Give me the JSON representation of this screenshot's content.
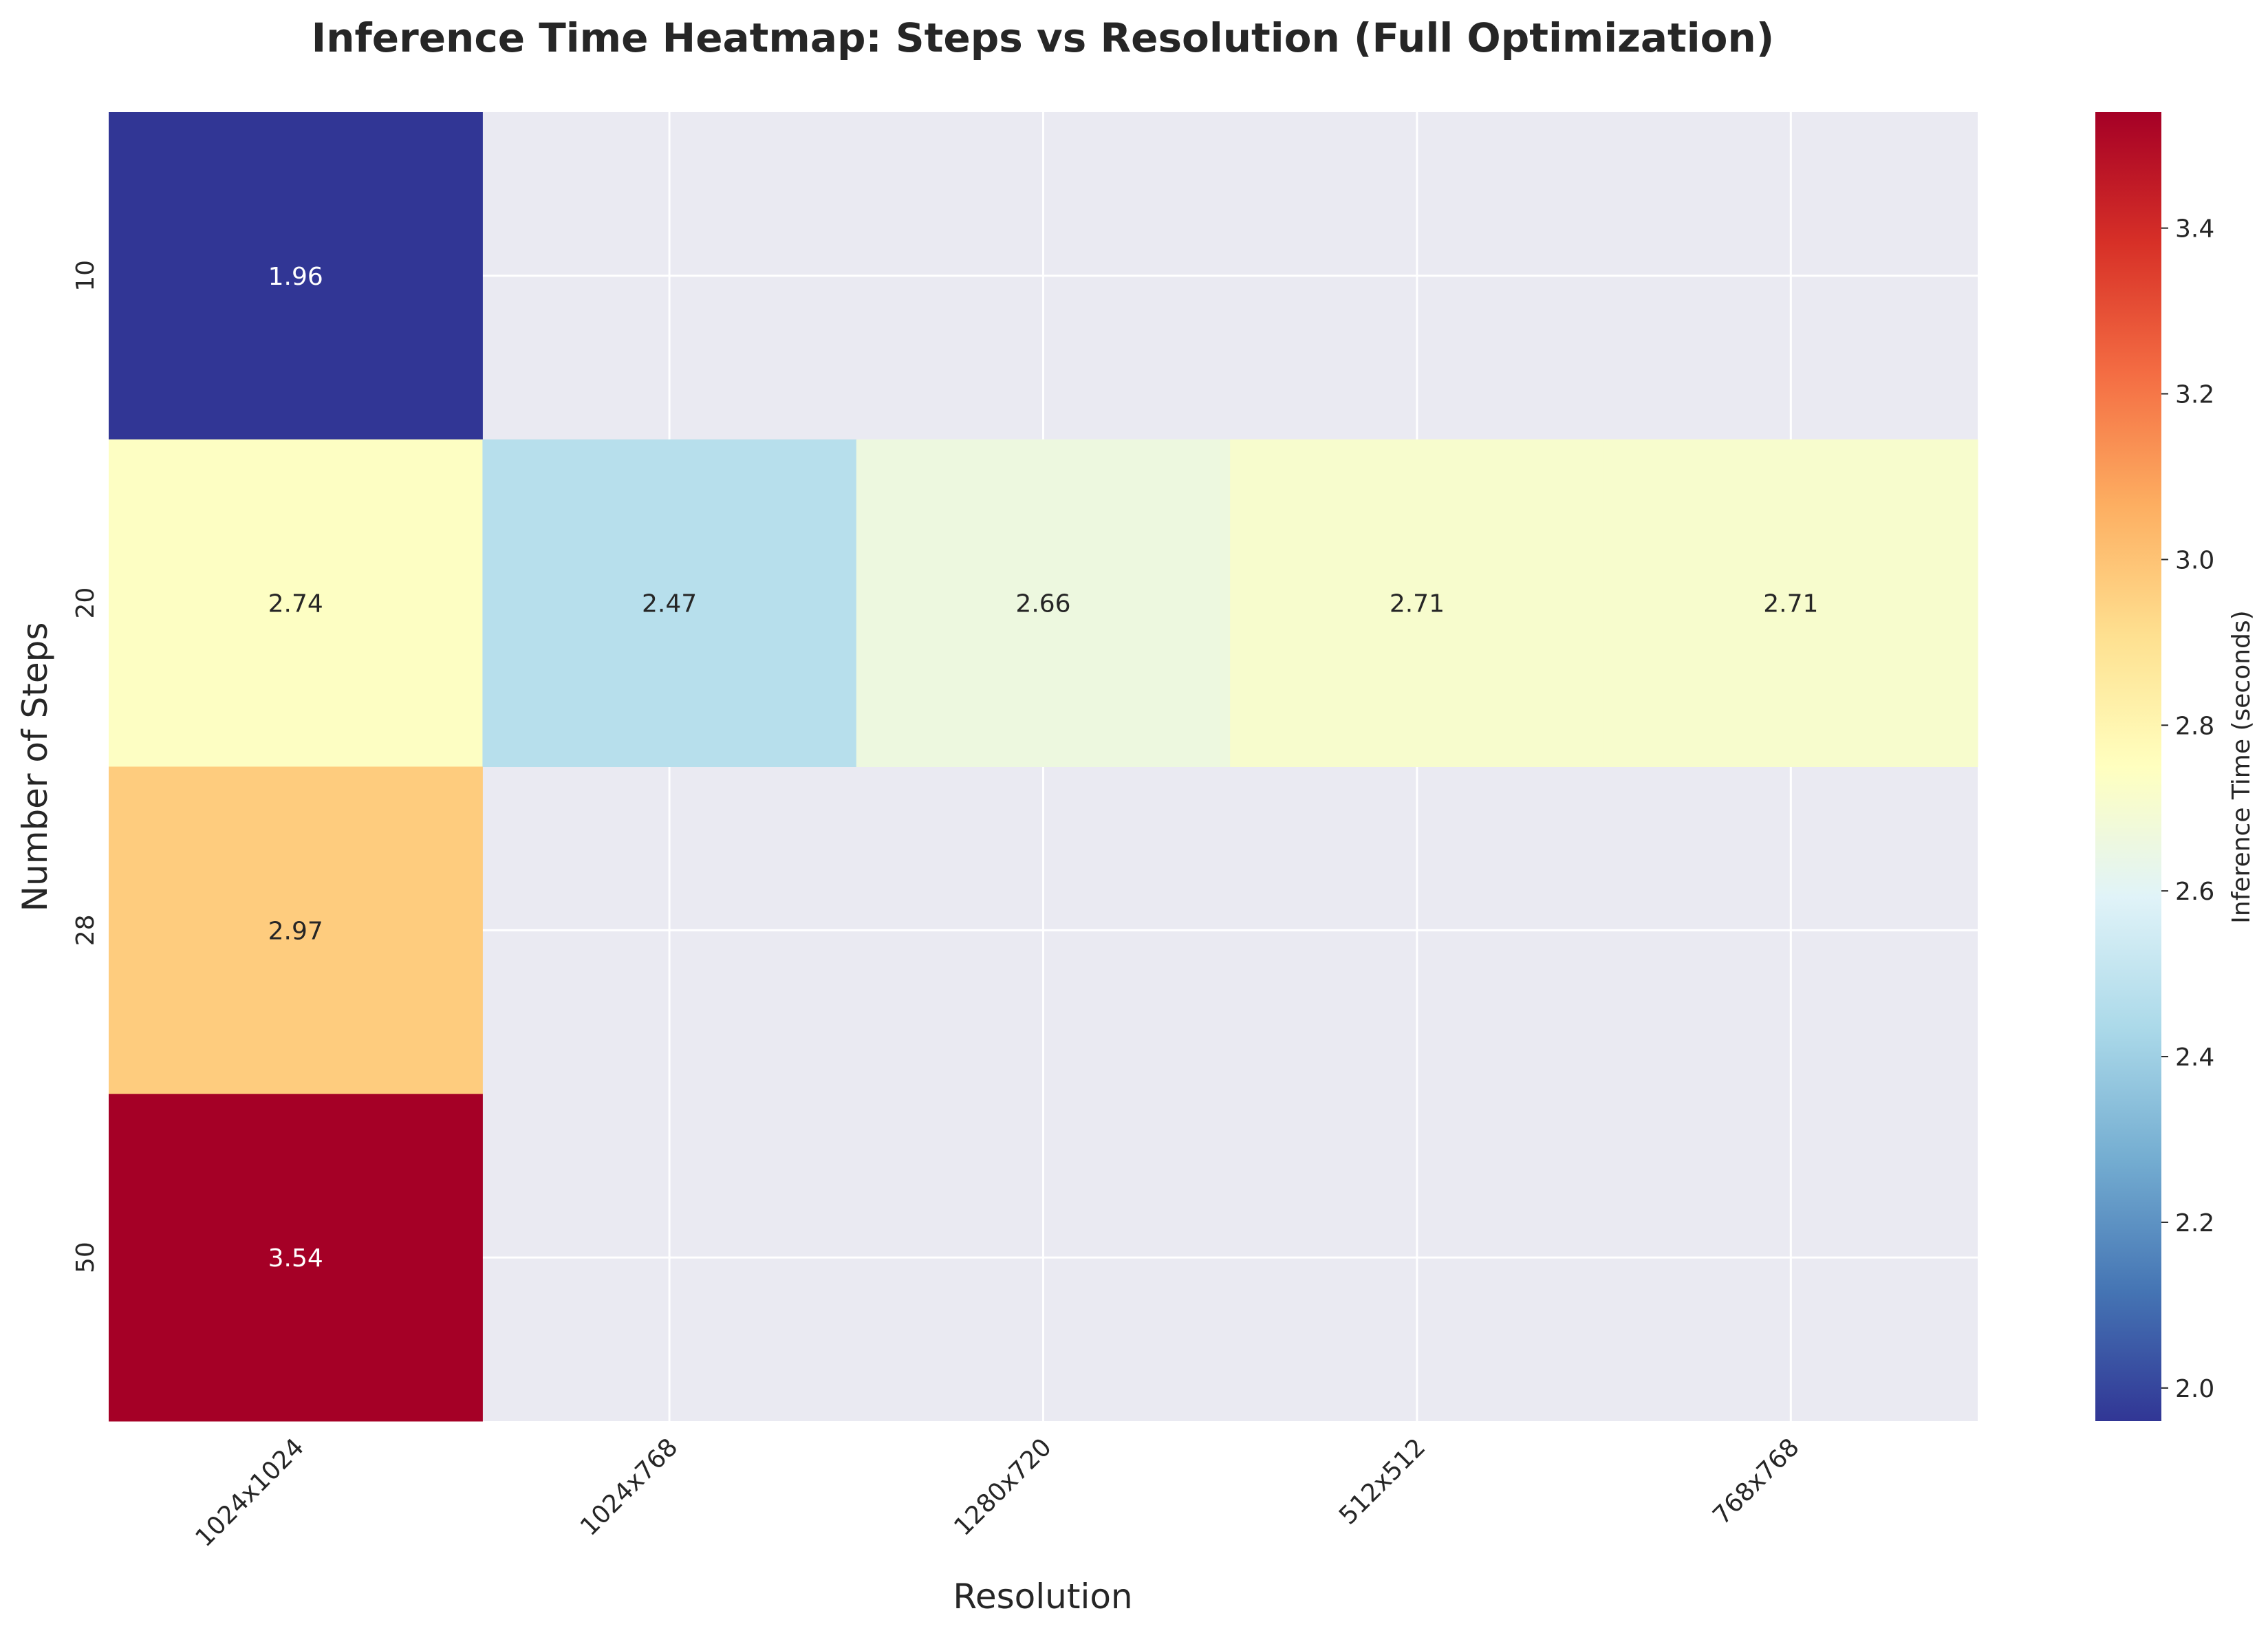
{
  "chart_data": {
    "type": "heatmap",
    "title": "Inference Time Heatmap: Steps vs Resolution (Full Optimization)",
    "xlabel": "Resolution",
    "ylabel": "Number of Steps",
    "x_categories": [
      "1024x1024",
      "1024x768",
      "1280x720",
      "512x512",
      "768x768"
    ],
    "y_categories": [
      "10",
      "20",
      "28",
      "50"
    ],
    "values": [
      [
        1.96,
        null,
        null,
        null,
        null
      ],
      [
        2.74,
        2.47,
        2.66,
        2.71,
        2.71
      ],
      [
        2.97,
        null,
        null,
        null,
        null
      ],
      [
        3.54,
        null,
        null,
        null,
        null
      ]
    ],
    "colorbar": {
      "label": "Inference Time (seconds)",
      "range": [
        1.96,
        3.54
      ],
      "ticks": [
        "2.0",
        "2.2",
        "2.4",
        "2.6",
        "2.8",
        "3.0",
        "3.2",
        "3.4"
      ],
      "colormap": "RdYlBu_r"
    },
    "missing_color": "#eaeaf2",
    "grid": true
  }
}
